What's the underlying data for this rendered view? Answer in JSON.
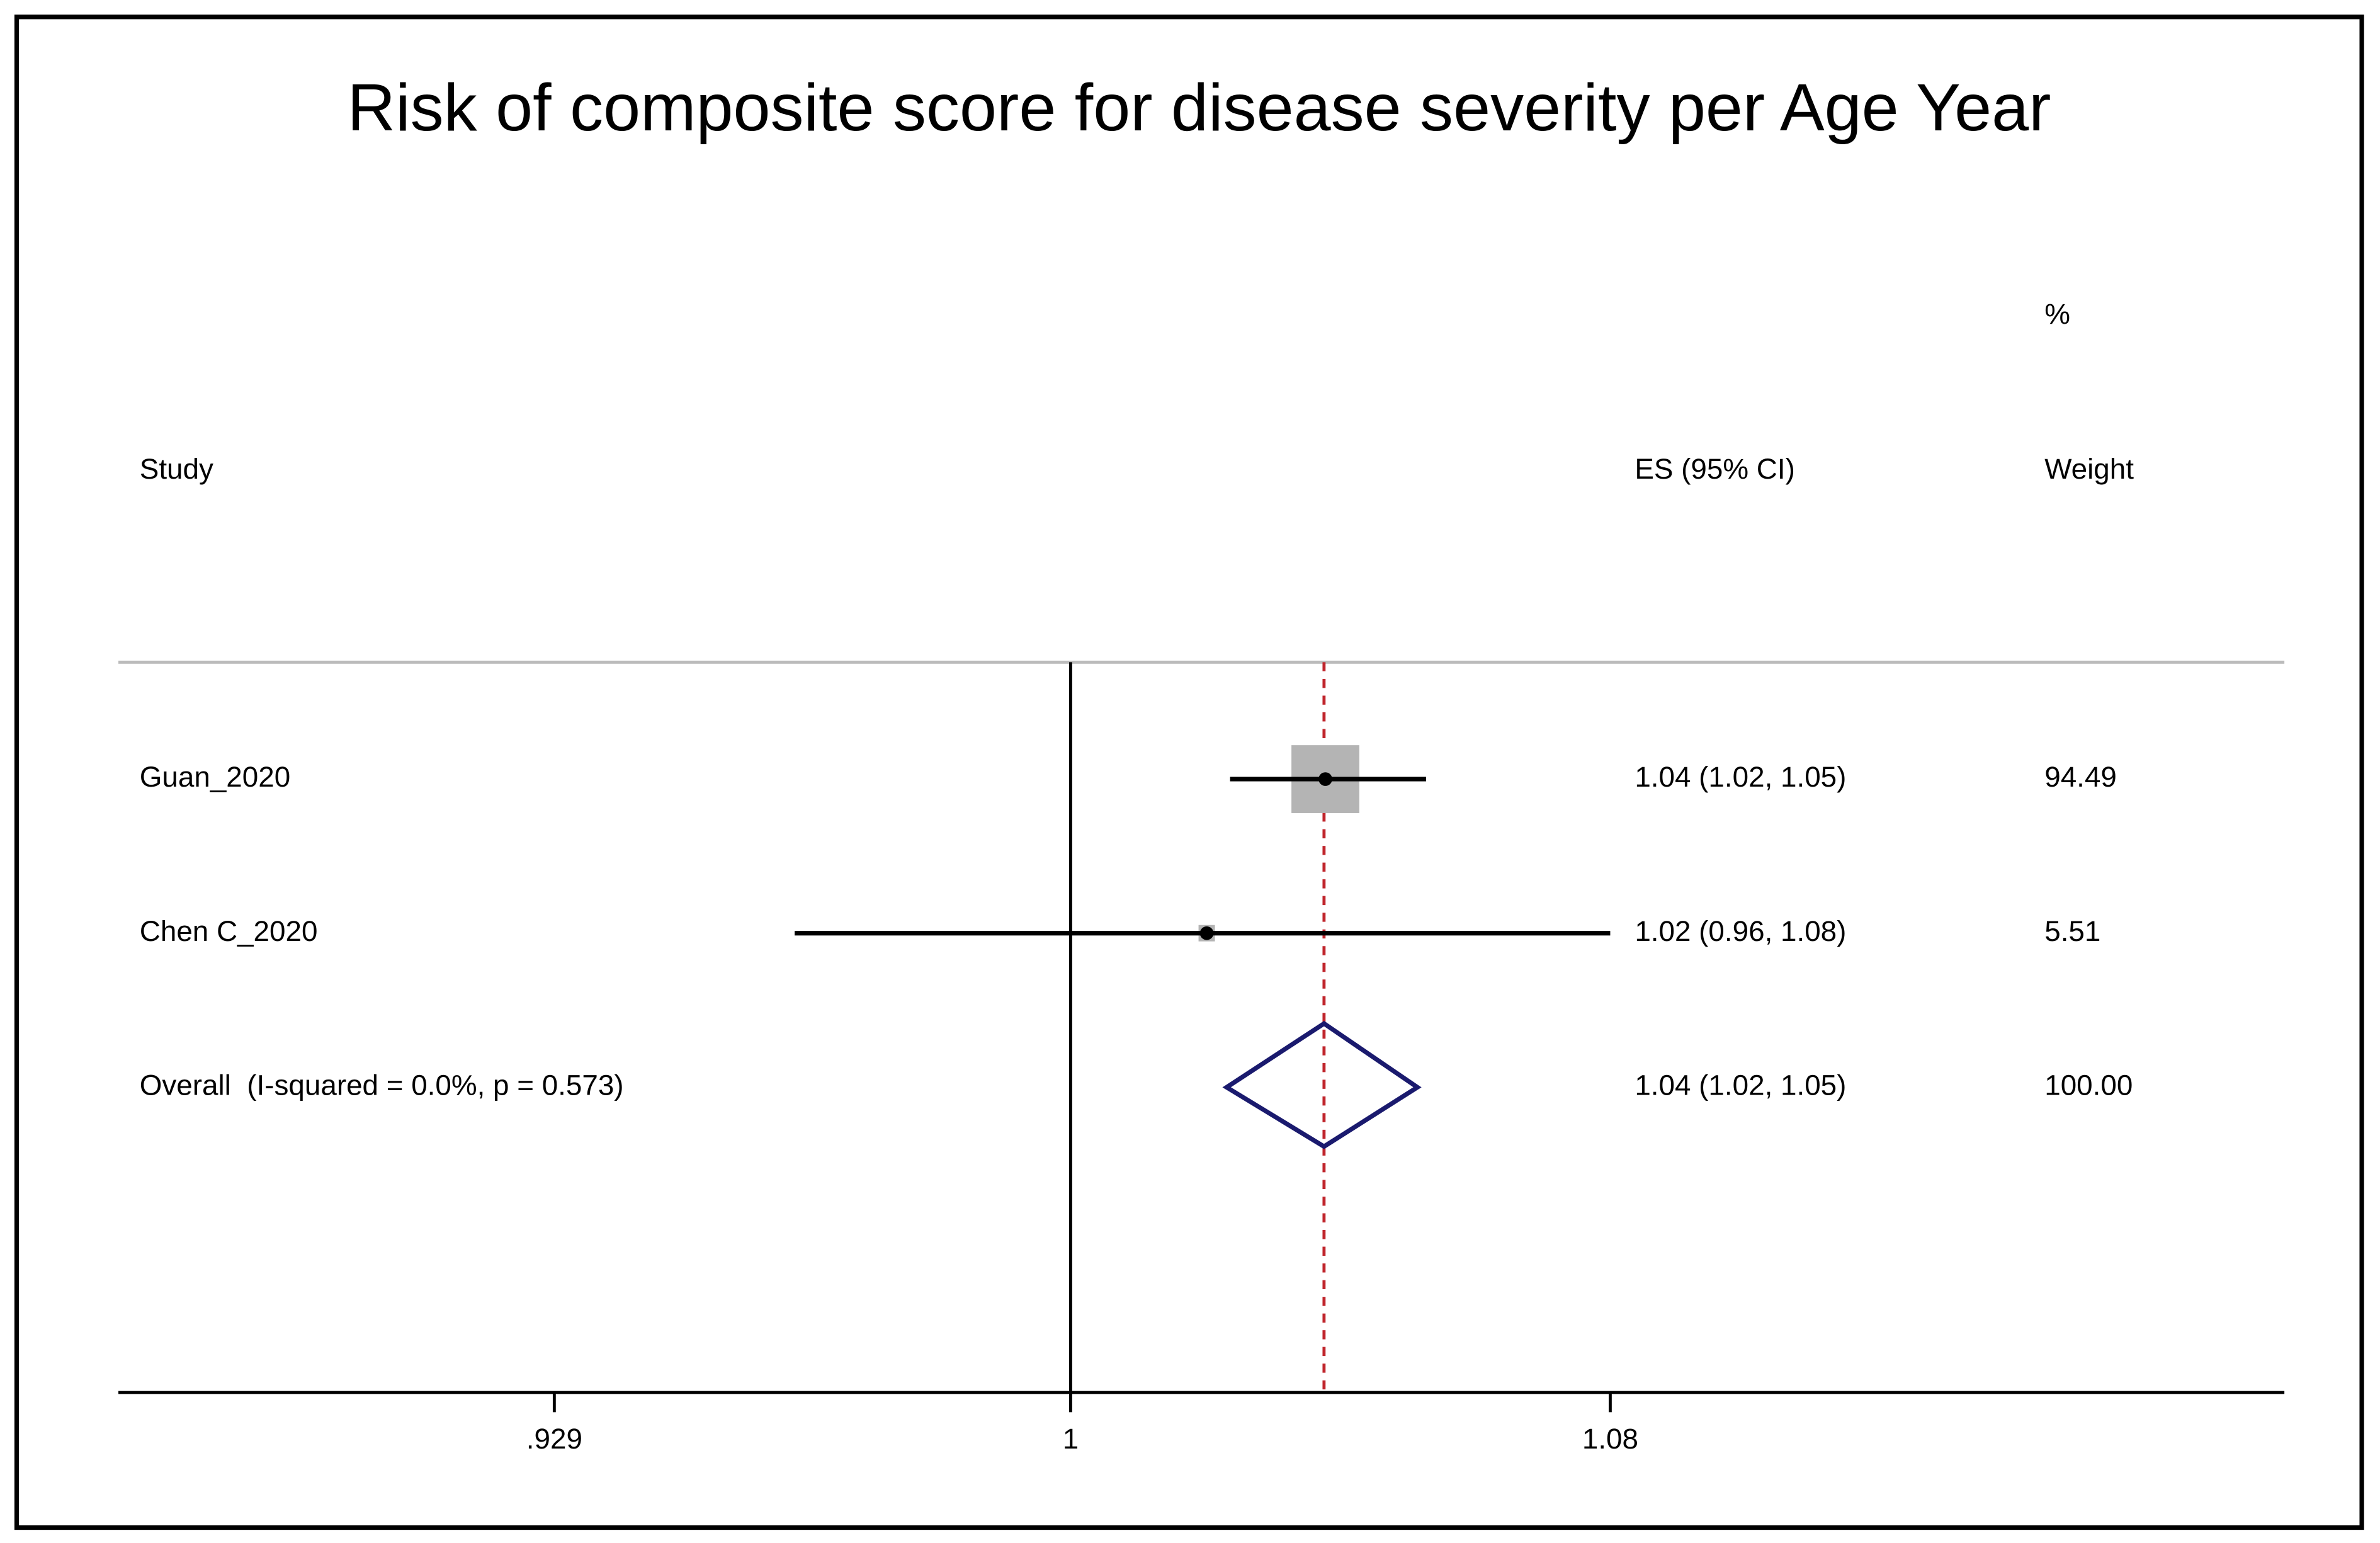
{
  "chart_data": {
    "type": "forest",
    "title": "Risk of composite score for disease severity per Age Year",
    "header": {
      "study": "Study",
      "es": "ES (95% CI)",
      "weight_unit": "%",
      "weight": "Weight"
    },
    "rows": [
      {
        "study": "Guan_2020",
        "es": 1.037,
        "lo": 1.023,
        "hi": 1.052,
        "es_label": "1.04 (1.02, 1.05)",
        "weight": 94.49,
        "weight_label": "94.49"
      },
      {
        "study": "Chen C_2020",
        "es": 1.0196,
        "lo": 0.9614,
        "hi": 1.08,
        "es_label": "1.02 (0.96, 1.08)",
        "weight": 5.51,
        "weight_label": "5.51"
      }
    ],
    "overall": {
      "study": "Overall  (I-squared = 0.0%, p = 0.573)",
      "es": 1.0368,
      "lo": 1.0225,
      "hi": 1.0507,
      "es_label": "1.04 (1.02, 1.05)",
      "weight": 100,
      "weight_label": "100.00"
    },
    "null_value": 1,
    "xscale": "log",
    "xlim": [
      0.873,
      1.189
    ],
    "xticks": [
      {
        "value": 0.929,
        "label": ".929"
      },
      1,
      1.08
    ],
    "box_color": "#b4b4b4",
    "diamond_color": "#1a1a6e",
    "overall_line_color": "#c0262d"
  }
}
